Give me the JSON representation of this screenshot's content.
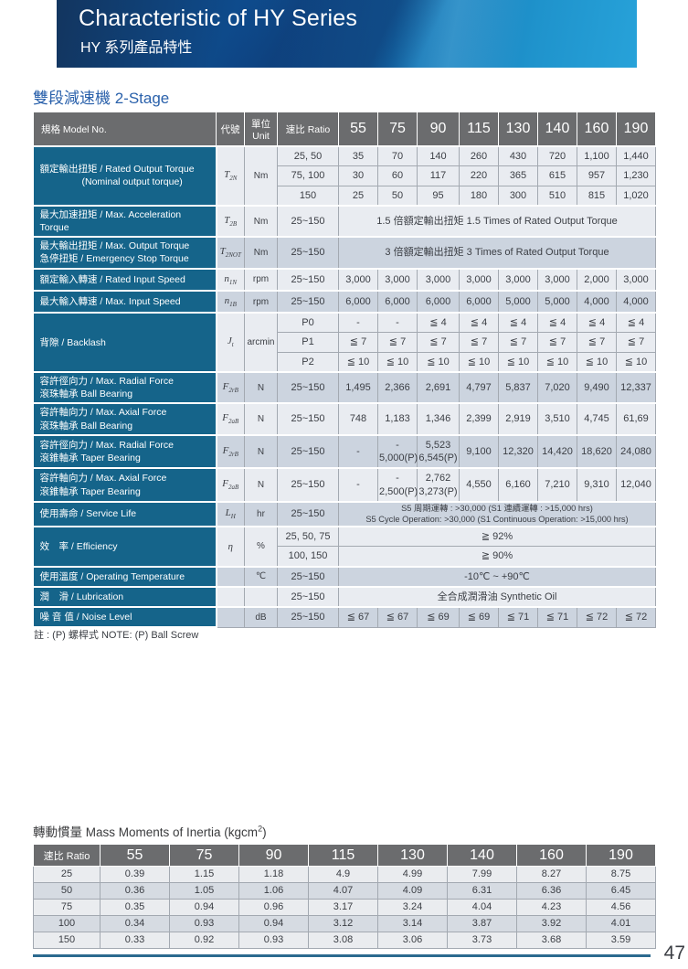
{
  "banner": {
    "title": "Characteristic of HY Series",
    "subtitle": "HY 系列產品特性"
  },
  "section1": {
    "title": "雙段減速機 2-Stage"
  },
  "main_table": {
    "header": {
      "model": "規格 Model No.",
      "symbol": "代號",
      "unit_zh": "單位",
      "unit_en": "Unit",
      "ratio": "速比 Ratio",
      "ratios": [
        "55",
        "75",
        "90",
        "115",
        "130",
        "140",
        "160",
        "190"
      ]
    },
    "groups": [
      {
        "label_lines": [
          "額定輸出扭矩 / Rated Output Torque",
          "(Nominal output torque)"
        ],
        "indent2": true,
        "symbol": {
          "base": "T",
          "sub": "2N"
        },
        "unit": "Nm",
        "shade": "light",
        "rows": [
          {
            "ratio": "25, 50",
            "values": [
              "35",
              "70",
              "140",
              "260",
              "430",
              "720",
              "1,100",
              "1,440"
            ]
          },
          {
            "ratio": "75, 100",
            "values": [
              "30",
              "60",
              "117",
              "220",
              "365",
              "615",
              "957",
              "1,230"
            ]
          },
          {
            "ratio": "150",
            "values": [
              "25",
              "50",
              "95",
              "180",
              "300",
              "510",
              "815",
              "1,020"
            ]
          }
        ]
      },
      {
        "label_lines": [
          "最大加速扭矩 / Max. Acceleration Torque"
        ],
        "symbol": {
          "base": "T",
          "sub": "2B"
        },
        "unit": "Nm",
        "shade": "light",
        "rows": [
          {
            "ratio": "25~150",
            "span": "1.5 倍額定輸出扭矩  1.5 Times of Rated Output Torque"
          }
        ]
      },
      {
        "label_lines": [
          "最大輸出扭矩 / Max. Output Torque",
          "急停扭矩 / Emergency Stop Torque"
        ],
        "symbol": {
          "base": "T",
          "sub": "2NOT"
        },
        "unit": "Nm",
        "shade": "dark",
        "rows": [
          {
            "ratio": "25~150",
            "span": "3 倍額定輸出扭矩 3 Times of Rated Output Torque"
          }
        ]
      },
      {
        "label_lines": [
          "額定輸入轉速 / Rated Input Speed"
        ],
        "symbol": {
          "base": "n",
          "sub": "1N"
        },
        "unit": "rpm",
        "shade": "light",
        "rows": [
          {
            "ratio": "25~150",
            "values": [
              "3,000",
              "3,000",
              "3,000",
              "3,000",
              "3,000",
              "3,000",
              "2,000",
              "3,000"
            ]
          }
        ]
      },
      {
        "label_lines": [
          "最大輸入轉速 / Max. Input Speed"
        ],
        "symbol": {
          "base": "n",
          "sub": "1B"
        },
        "unit": "rpm",
        "shade": "dark",
        "rows": [
          {
            "ratio": "25~150",
            "values": [
              "6,000",
              "6,000",
              "6,000",
              "6,000",
              "5,000",
              "5,000",
              "4,000",
              "4,000"
            ]
          }
        ]
      },
      {
        "label_lines": [
          "背隙 / Backlash"
        ],
        "symbol": {
          "base": "J",
          "sub": "t"
        },
        "unit": "arcmin",
        "shade": "light",
        "rows": [
          {
            "ratio": "P0",
            "values": [
              "-",
              "-",
              "≦ 4",
              "≦ 4",
              "≦ 4",
              "≦ 4",
              "≦ 4",
              "≦ 4"
            ]
          },
          {
            "ratio": "P1",
            "values": [
              "≦ 7",
              "≦ 7",
              "≦ 7",
              "≦ 7",
              "≦ 7",
              "≦ 7",
              "≦ 7",
              "≦ 7"
            ]
          },
          {
            "ratio": "P2",
            "values": [
              "≦ 10",
              "≦ 10",
              "≦ 10",
              "≦ 10",
              "≦ 10",
              "≦ 10",
              "≦ 10",
              "≦ 10"
            ]
          }
        ]
      },
      {
        "label_lines": [
          "容許徑向力 / Max. Radial Force",
          "滾珠軸承 Ball Bearing"
        ],
        "symbol": {
          "base": "F",
          "sub": "2rB"
        },
        "unit": "N",
        "shade": "dark",
        "rows": [
          {
            "ratio": "25~150",
            "values": [
              "1,495",
              "2,366",
              "2,691",
              "4,797",
              "5,837",
              "7,020",
              "9,490",
              "12,337"
            ]
          }
        ]
      },
      {
        "label_lines": [
          "容許軸向力 / Max. Axial Force",
          "滾珠軸承 Ball Bearing"
        ],
        "symbol": {
          "base": "F",
          "sub": "2aB"
        },
        "unit": "N",
        "shade": "light",
        "rows": [
          {
            "ratio": "25~150",
            "values": [
              "748",
              "1,183",
              "1,346",
              "2,399",
              "2,919",
              "3,510",
              "4,745",
              "61,69"
            ]
          }
        ]
      },
      {
        "label_lines": [
          "容許徑向力 / Max. Radial Force",
          "滾錐軸承 Taper Bearing"
        ],
        "symbol": {
          "base": "F",
          "sub": "2rB"
        },
        "unit": "N",
        "shade": "dark",
        "rows": [
          {
            "ratio": "25~150",
            "values": [
              "-",
              "-\n5,000(P)",
              "5,523\n6,545(P)",
              "9,100",
              "12,320",
              "14,420",
              "18,620",
              "24,080"
            ]
          }
        ]
      },
      {
        "label_lines": [
          "容許軸向力 / Max. Axial Force",
          "滾錐軸承 Taper Bearing"
        ],
        "symbol": {
          "base": "F",
          "sub": "2aB"
        },
        "unit": "N",
        "shade": "light",
        "rows": [
          {
            "ratio": "25~150",
            "values": [
              "-",
              "-\n2,500(P)",
              "2,762\n3,273(P)",
              "4,550",
              "6,160",
              "7,210",
              "9,310",
              "12,040"
            ]
          }
        ]
      },
      {
        "label_lines": [
          "使用壽命 / Service Life"
        ],
        "symbol": {
          "base": "L",
          "sub": "H"
        },
        "unit": "hr",
        "shade": "dark",
        "rows": [
          {
            "ratio": "25~150",
            "small": true,
            "span": "S5 周期運轉 : >30,000 (S1 連續運轉 : >15,000 hrs)\nS5 Cycle Operation: >30,000 (S1 Continuous Operation: >15,000 hrs)"
          }
        ]
      },
      {
        "label_lines": [
          "效　率 / Efficiency"
        ],
        "symbol": {
          "base": "η",
          "sub": ""
        },
        "unit": "%",
        "shade": "light",
        "rows": [
          {
            "ratio": "25, 50, 75",
            "span": "≧ 92%"
          },
          {
            "ratio": "100, 150",
            "span": "≧ 90%"
          }
        ]
      },
      {
        "label_lines": [
          "使用溫度 / Operating Temperature"
        ],
        "symbol": {
          "base": "",
          "sub": ""
        },
        "unit": "℃",
        "shade": "dark",
        "rows": [
          {
            "ratio": "25~150",
            "span": "-10℃ ~ +90℃"
          }
        ]
      },
      {
        "label_lines": [
          "潤　滑 / Lubrication"
        ],
        "symbol": {
          "base": "",
          "sub": ""
        },
        "unit": "",
        "shade": "light",
        "rows": [
          {
            "ratio": "25~150",
            "span": "全合成潤滑油 Synthetic Oil"
          }
        ]
      },
      {
        "label_lines": [
          "噪 音 值 / Noise Level"
        ],
        "symbol": {
          "base": "",
          "sub": ""
        },
        "unit": "dB",
        "shade": "dark",
        "rows": [
          {
            "ratio": "25~150",
            "values": [
              "≦ 67",
              "≦ 67",
              "≦ 69",
              "≦ 69",
              "≦ 71",
              "≦ 71",
              "≦ 72",
              "≦ 72"
            ]
          }
        ]
      }
    ]
  },
  "note": "註 : (P) 螺桿式  NOTE: (P) Ball Screw",
  "inertia_table": {
    "title": {
      "prefix": "轉動慣量 Mass Moments of Inertia (kgcm",
      "sup": "2",
      "suffix": ")"
    },
    "header": [
      "速比 Ratio",
      "55",
      "75",
      "90",
      "115",
      "130",
      "140",
      "160",
      "190"
    ],
    "rows": [
      [
        "25",
        "0.39",
        "1.15",
        "1.18",
        "4.9",
        "4.99",
        "7.99",
        "8.27",
        "8.75"
      ],
      [
        "50",
        "0.36",
        "1.05",
        "1.06",
        "4.07",
        "4.09",
        "6.31",
        "6.36",
        "6.45"
      ],
      [
        "75",
        "0.35",
        "0.94",
        "0.96",
        "3.17",
        "3.24",
        "4.04",
        "4.23",
        "4.56"
      ],
      [
        "100",
        "0.34",
        "0.93",
        "0.94",
        "3.12",
        "3.14",
        "3.87",
        "3.92",
        "4.01"
      ],
      [
        "150",
        "0.33",
        "0.92",
        "0.93",
        "3.08",
        "3.06",
        "3.73",
        "3.68",
        "3.59"
      ]
    ]
  },
  "page": {
    "number": "47"
  },
  "colors": {
    "banner_blue_dark": "#12355f",
    "banner_blue_light": "#27a2d9",
    "section_title_blue": "#2a61ab",
    "table_header_gray": "#6b6c6e",
    "spec_label_teal": "#15648a",
    "row_light": "#e9ecf1",
    "row_dark": "#ccd4df",
    "footer_line_blue": "#2c6a8f"
  }
}
